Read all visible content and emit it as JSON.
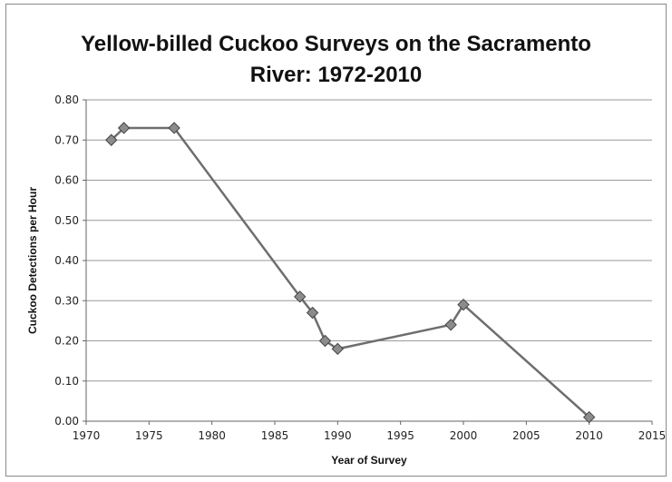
{
  "chart_data": {
    "type": "line",
    "title_lines": [
      "Yellow-billed Cuckoo Surveys on the Sacramento",
      "River: 1972-2010"
    ],
    "xlabel": "Year of Survey",
    "ylabel": "Cuckoo Detections per Hour",
    "xlim": [
      1970,
      2015
    ],
    "ylim": [
      0,
      0.8
    ],
    "x_ticks": [
      "1970",
      "1975",
      "1980",
      "1985",
      "1990",
      "1995",
      "2000",
      "2005",
      "2010",
      "2015"
    ],
    "y_ticks": [
      "0.00",
      "0.10",
      "0.20",
      "0.30",
      "0.40",
      "0.50",
      "0.60",
      "0.70",
      "0.80"
    ],
    "grid": "horizontal",
    "legend": "none",
    "series": [
      {
        "x": [
          1972,
          1973,
          1977,
          1987,
          1988,
          1989,
          1990,
          1999,
          2000,
          2010
        ],
        "y": [
          0.7,
          0.73,
          0.73,
          0.31,
          0.27,
          0.2,
          0.18,
          0.24,
          0.29,
          0.01
        ],
        "color": "#6e6e6e",
        "marker": "diamond"
      }
    ]
  }
}
